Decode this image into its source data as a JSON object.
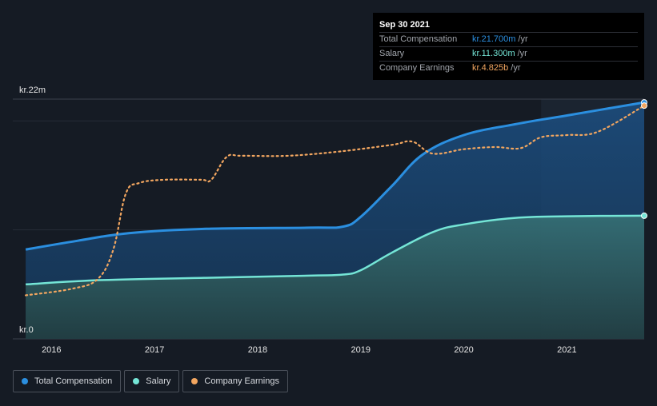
{
  "chart_data": {
    "type": "area",
    "y_axis": {
      "top_label": "kr.22m",
      "bottom_label": "kr.0",
      "ylim": [
        0,
        22
      ]
    },
    "x_ticks": [
      "2016",
      "2017",
      "2018",
      "2019",
      "2020",
      "2021"
    ],
    "series": [
      {
        "name": "Total Compensation",
        "color": "#2b8fe0",
        "x": [
          2015.75,
          2016.25,
          2016.75,
          2017.5,
          2018.5,
          2018.83,
          2019.0,
          2019.3,
          2019.6,
          2020.0,
          2020.5,
          2021.0,
          2021.75
        ],
        "y": [
          8.2,
          9.0,
          9.7,
          10.1,
          10.2,
          10.3,
          11.2,
          14.0,
          16.9,
          18.7,
          19.7,
          20.5,
          21.7
        ]
      },
      {
        "name": "Salary",
        "color": "#74e5d6",
        "x": [
          2015.75,
          2016.5,
          2017.5,
          2018.5,
          2018.83,
          2019.0,
          2019.3,
          2019.7,
          2020.0,
          2020.5,
          2021.0,
          2021.75
        ],
        "y": [
          5.0,
          5.4,
          5.6,
          5.8,
          5.9,
          6.3,
          7.9,
          9.8,
          10.5,
          11.1,
          11.25,
          11.3
        ]
      },
      {
        "name": "Company Earnings",
        "color": "#f2a660",
        "x": [
          2015.75,
          2016.2,
          2016.45,
          2016.6,
          2016.72,
          2016.85,
          2017.1,
          2017.45,
          2017.55,
          2017.7,
          2017.85,
          2018.3,
          2018.8,
          2019.3,
          2019.5,
          2019.7,
          2020.0,
          2020.3,
          2020.55,
          2020.75,
          2021.0,
          2021.3,
          2021.75
        ],
        "y": [
          4.0,
          4.6,
          5.5,
          8.2,
          13.3,
          14.3,
          14.6,
          14.6,
          14.6,
          16.7,
          16.8,
          16.8,
          17.2,
          17.8,
          18.1,
          17.0,
          17.4,
          17.6,
          17.5,
          18.5,
          18.7,
          19.0,
          21.4
        ],
        "dashed": true
      }
    ],
    "highlight_start": 2020.75
  },
  "tooltip": {
    "date": "Sep 30 2021",
    "rows": [
      {
        "label": "Total Compensation",
        "value": "kr.21.700m",
        "unit": "/yr",
        "color": "#2b8fe0"
      },
      {
        "label": "Salary",
        "value": "kr.11.300m",
        "unit": "/yr",
        "color": "#74e5d6"
      },
      {
        "label": "Company Earnings",
        "value": "kr.4.825b",
        "unit": "/yr",
        "color": "#f2a660"
      }
    ]
  },
  "legend": [
    {
      "label": "Total Compensation",
      "color": "#2b8fe0"
    },
    {
      "label": "Salary",
      "color": "#74e5d6"
    },
    {
      "label": "Company Earnings",
      "color": "#f2a660"
    }
  ]
}
